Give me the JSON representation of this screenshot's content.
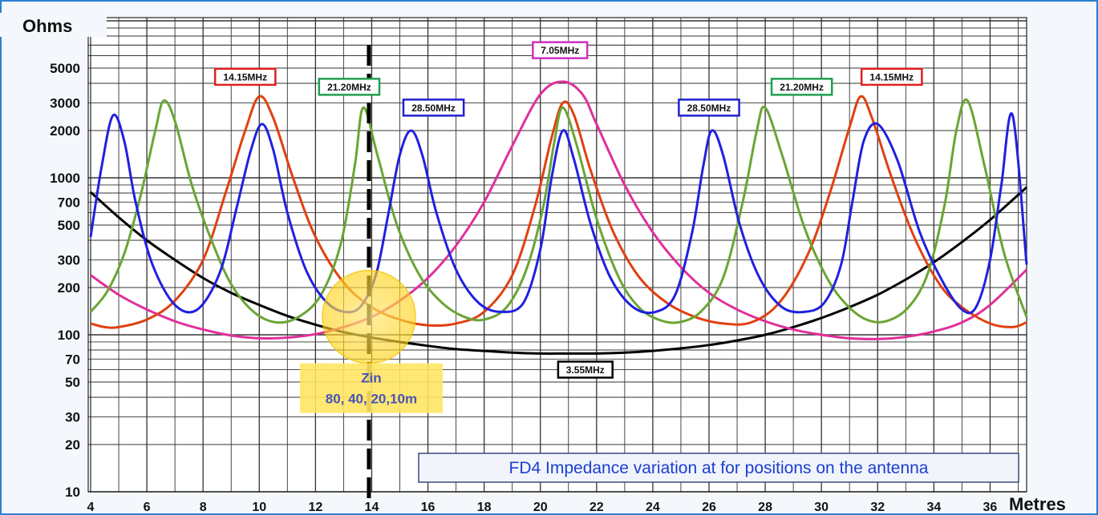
{
  "chart_data": {
    "type": "line",
    "title": "FD4 Impedance  variation at for positions on the antenna",
    "ylabel": "Ohms",
    "xlabel": "Metres",
    "xlim": [
      4,
      37.3
    ],
    "ylim": [
      10,
      12000
    ],
    "yscale": "log",
    "x_ticks": [
      4,
      6,
      8,
      10,
      12,
      14,
      16,
      18,
      20,
      22,
      24,
      26,
      28,
      30,
      32,
      34,
      36
    ],
    "y_ticks": [
      10,
      20,
      30,
      50,
      70,
      100,
      200,
      300,
      500,
      700,
      1000,
      2000,
      3000,
      5000
    ],
    "grid": true,
    "feed_point_x": 13.9,
    "annotation": {
      "line1": "Zin",
      "line2": "80, 40, 20,10m",
      "x": 13.9,
      "y": 130
    },
    "series": [
      {
        "name": "3.55MHz",
        "color": "#000000",
        "x": [
          4,
          5,
          6,
          7,
          8,
          9,
          10,
          11,
          12,
          13,
          14,
          15,
          16,
          17,
          18,
          19,
          20,
          21,
          22,
          23,
          24,
          25,
          26,
          27,
          28,
          29,
          30,
          31,
          32,
          33,
          34,
          35,
          36,
          37.3
        ],
        "y": [
          810,
          560,
          400,
          300,
          230,
          185,
          155,
          132,
          116,
          104,
          96,
          90,
          85,
          81,
          79,
          77,
          76,
          76,
          76,
          77,
          79,
          82,
          86,
          92,
          100,
          112,
          128,
          150,
          180,
          225,
          290,
          390,
          540,
          870
        ]
      },
      {
        "name": "7.05MHz",
        "color": "#e0309a",
        "x": [
          4,
          5,
          6,
          7,
          8,
          9,
          10,
          11,
          12,
          13,
          14,
          15,
          16,
          17,
          18,
          19,
          20,
          20.8,
          21.5,
          22,
          23,
          24,
          25,
          26,
          27,
          28,
          29,
          30,
          31,
          32,
          33,
          34,
          35,
          36,
          37.3
        ],
        "y": [
          240,
          180,
          145,
          122,
          108,
          99,
          95,
          96,
          101,
          112,
          130,
          165,
          230,
          370,
          700,
          1600,
          3400,
          4100,
          3400,
          2200,
          900,
          450,
          270,
          185,
          145,
          122,
          108,
          100,
          95,
          94,
          97,
          105,
          120,
          155,
          260
        ]
      },
      {
        "name": "14.15MHz",
        "color": "#e04010",
        "x": [
          4,
          4.5,
          5,
          6,
          7,
          8,
          8.8,
          9.5,
          10,
          10.5,
          11.2,
          12,
          13,
          14,
          15,
          16,
          17,
          18,
          19,
          19.8,
          20.4,
          20.8,
          21.2,
          21.8,
          22.6,
          23.5,
          24.5,
          25.5,
          26.5,
          27.5,
          28.5,
          29.5,
          30.3,
          31,
          31.4,
          31.8,
          32.5,
          33.3,
          34.2,
          35,
          36,
          36.8,
          37.3
        ],
        "y": [
          118,
          112,
          112,
          125,
          165,
          300,
          800,
          2000,
          3300,
          2400,
          1000,
          420,
          215,
          150,
          125,
          115,
          118,
          140,
          240,
          650,
          1800,
          3000,
          2500,
          1100,
          450,
          235,
          160,
          130,
          118,
          120,
          160,
          320,
          800,
          2100,
          3300,
          2400,
          1000,
          420,
          210,
          150,
          118,
          112,
          120
        ]
      },
      {
        "name": "21.20MHz",
        "color": "#6aa534",
        "x": [
          4,
          4.6,
          5.2,
          5.8,
          6.3,
          6.6,
          7,
          7.6,
          8.3,
          9,
          9.8,
          10.6,
          11.4,
          12.2,
          12.9,
          13.4,
          13.7,
          14.2,
          14.9,
          15.7,
          16.5,
          17.3,
          18,
          18.8,
          19.5,
          20.1,
          20.5,
          20.8,
          21.3,
          22,
          22.8,
          23.5,
          24.2,
          24.9,
          25.7,
          26.5,
          27.2,
          27.7,
          28,
          28.6,
          29.4,
          30.2,
          30.9,
          31.6,
          32.3,
          33.1,
          33.8,
          34.4,
          34.8,
          35.2,
          35.8,
          36.5,
          37.3
        ],
        "y": [
          140,
          190,
          330,
          800,
          2000,
          3100,
          2300,
          900,
          400,
          210,
          140,
          120,
          130,
          180,
          380,
          1200,
          2800,
          1400,
          500,
          240,
          160,
          130,
          125,
          150,
          260,
          650,
          1700,
          2800,
          1600,
          550,
          230,
          150,
          125,
          120,
          140,
          230,
          700,
          2000,
          2800,
          1400,
          480,
          230,
          155,
          125,
          122,
          150,
          250,
          700,
          2000,
          3100,
          1200,
          330,
          130
        ]
      },
      {
        "name": "28.50MHz",
        "color": "#2020e0",
        "x": [
          4,
          4.4,
          4.8,
          5.2,
          5.6,
          6.2,
          7,
          7.8,
          8.6,
          9.2,
          9.7,
          10.1,
          10.5,
          11,
          11.7,
          12.5,
          13.3,
          13.8,
          14.2,
          14.6,
          15,
          15.4,
          15.8,
          16.3,
          17,
          17.8,
          18.6,
          19.4,
          20,
          20.4,
          20.8,
          21.2,
          21.8,
          22.5,
          23.3,
          24.1,
          24.8,
          25.4,
          25.8,
          26.1,
          26.5,
          27.1,
          27.8,
          28.6,
          29.4,
          30.1,
          30.7,
          31.1,
          31.5,
          32,
          32.7,
          33.5,
          34.3,
          35,
          35.5,
          36,
          36.4,
          36.8,
          37.3
        ],
        "y": [
          420,
          1200,
          2500,
          1700,
          700,
          280,
          155,
          145,
          250,
          650,
          1500,
          2200,
          1500,
          600,
          250,
          155,
          140,
          170,
          260,
          600,
          1400,
          2000,
          1400,
          600,
          260,
          160,
          140,
          160,
          350,
          1000,
          2000,
          1300,
          500,
          230,
          150,
          140,
          180,
          450,
          1200,
          2000,
          1400,
          500,
          230,
          150,
          140,
          160,
          280,
          700,
          1700,
          2200,
          1300,
          450,
          220,
          145,
          150,
          300,
          900,
          2500,
          280
        ]
      }
    ],
    "labels": [
      {
        "text": "14.15MHz",
        "x": 9.5,
        "y": 4400,
        "color": "#e02020"
      },
      {
        "text": "21.20MHz",
        "x": 13.2,
        "y": 3800,
        "color": "#20a050"
      },
      {
        "text": "28.50MHz",
        "x": 16.2,
        "y": 2800,
        "color": "#2020d0"
      },
      {
        "text": "7.05MHz",
        "x": 20.7,
        "y": 6500,
        "color": "#d030c0"
      },
      {
        "text": "28.50MHz",
        "x": 26.0,
        "y": 2800,
        "color": "#2020d0"
      },
      {
        "text": "21.20MHz",
        "x": 29.3,
        "y": 3800,
        "color": "#20a050"
      },
      {
        "text": "14.15MHz",
        "x": 32.5,
        "y": 4400,
        "color": "#e02020"
      },
      {
        "text": "3.55MHz",
        "x": 21.6,
        "y": 60,
        "color": "#000000"
      }
    ]
  }
}
